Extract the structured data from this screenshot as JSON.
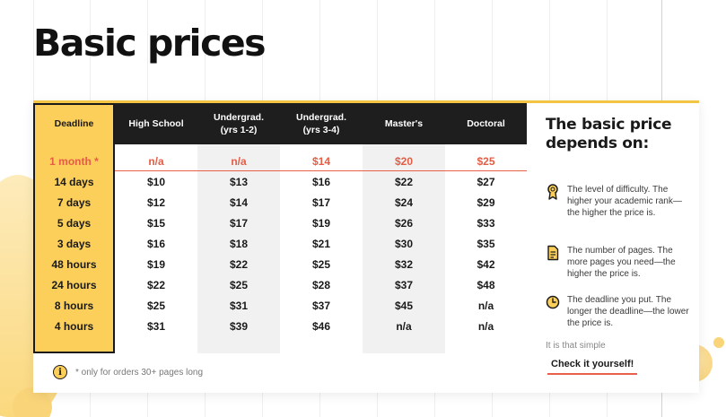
{
  "page": {
    "title": "Basic prices"
  },
  "table": {
    "headers": [
      "Deadline",
      "High School",
      "Undergrad.\n(yrs 1-2)",
      "Undergrad.\n(yrs 3-4)",
      "Master's",
      "Doctoral"
    ],
    "rows": [
      [
        "1 month *",
        "n/a",
        "n/a",
        "$14",
        "$20",
        "$25"
      ],
      [
        "14 days",
        "$10",
        "$13",
        "$16",
        "$22",
        "$27"
      ],
      [
        "7 days",
        "$12",
        "$14",
        "$17",
        "$24",
        "$29"
      ],
      [
        "5 days",
        "$15",
        "$17",
        "$19",
        "$26",
        "$33"
      ],
      [
        "3 days",
        "$16",
        "$18",
        "$21",
        "$30",
        "$35"
      ],
      [
        "48 hours",
        "$19",
        "$22",
        "$25",
        "$32",
        "$42"
      ],
      [
        "24 hours",
        "$22",
        "$25",
        "$28",
        "$37",
        "$48"
      ],
      [
        "8 hours",
        "$25",
        "$31",
        "$37",
        "$45",
        "n/a"
      ],
      [
        "4 hours",
        "$31",
        "$39",
        "$46",
        "n/a",
        "n/a"
      ]
    ],
    "footnote": "* only for orders 30+ pages long",
    "footnote_icon": "info-icon"
  },
  "side": {
    "title": "The basic price depends on:",
    "reasons": [
      {
        "icon": "award-ribbon-icon",
        "text": "The level of difficulty. The higher your academic rank—the higher the price is."
      },
      {
        "icon": "document-icon",
        "text": "The number of pages. The more pages you need—the higher the price is."
      },
      {
        "icon": "clock-icon",
        "text": "The deadline you put. The longer the deadline—the lower the price is."
      }
    ],
    "simple_text": "It is that simple",
    "cta_label": "Check it yourself!"
  },
  "colors": {
    "accent_yellow": "#fbcf59",
    "header_dark": "#1e1e1e",
    "highlight_red": "#e55d44"
  }
}
